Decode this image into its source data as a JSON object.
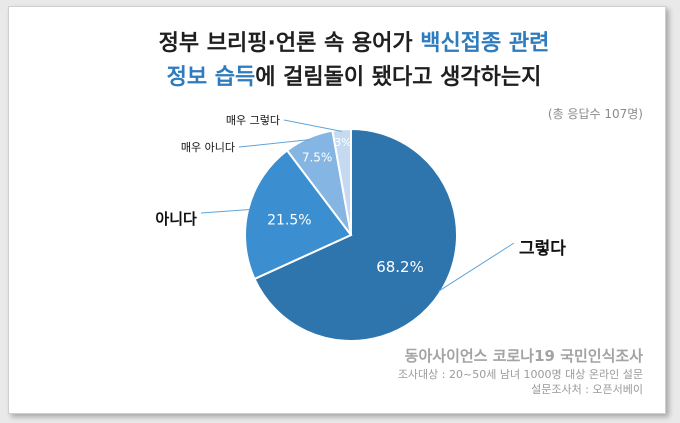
{
  "title": {
    "line1_plain": "정부 브리핑·언론 속 용어가 ",
    "line1_highlight": "백신접종 관련",
    "line2_highlight": "정보 습득",
    "line2_plain": "에 걸림돌이 됐다고 생각하는지"
  },
  "total_note": "(총 응답수 107명)",
  "footer": {
    "source": "동아사이언스 코로나19 국민인식조사",
    "target": "조사대상 : 20~50세 남녀 1000명 대상 온라인 설문",
    "agency": "설문조사처 : 오픈서베이"
  },
  "chart_data": {
    "type": "pie",
    "slices": [
      {
        "label": "그렇다",
        "value": 68.2,
        "value_label": "68.2%",
        "color": "#2e74ad"
      },
      {
        "label": "아니다",
        "value": 21.5,
        "value_label": "21.5%",
        "color": "#3b8fd0"
      },
      {
        "label": "매우 아니다",
        "value": 7.5,
        "value_label": "7.5%",
        "color": "#85b6e3"
      },
      {
        "label": "매우 그렇다",
        "value": 2.8,
        "value_label": "3%",
        "color": "#c5daf0"
      }
    ],
    "title": "",
    "legend": "none"
  }
}
